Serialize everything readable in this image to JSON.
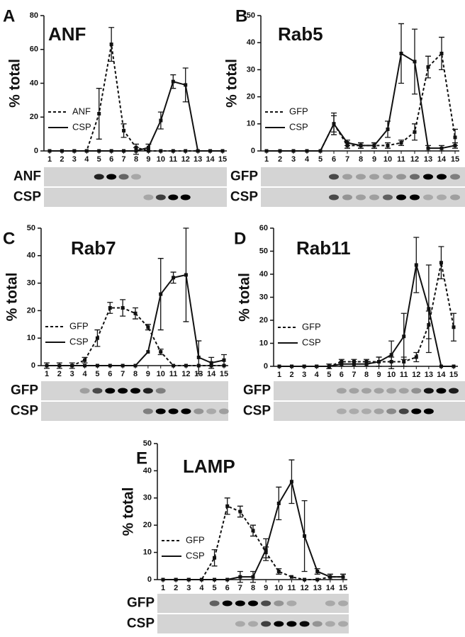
{
  "chart_data": [
    {
      "type": "line",
      "label": "A",
      "title": "ANF",
      "y_label": "% total",
      "categories": [
        "1",
        "2",
        "3",
        "4",
        "5",
        "6",
        "7",
        "8",
        "9",
        "10",
        "11",
        "12",
        "13",
        "14",
        "15"
      ],
      "ylim": [
        0,
        80
      ],
      "yticks": [
        0,
        20,
        40,
        60,
        80
      ],
      "series": [
        {
          "name": "ANF",
          "color": "#111111",
          "dash": true,
          "values": [
            0,
            0,
            0,
            0,
            22,
            63,
            12,
            2,
            0,
            0,
            0,
            0,
            0,
            0,
            0
          ],
          "errors": [
            0,
            0,
            0,
            0,
            15,
            10,
            4,
            2,
            0,
            0,
            0,
            0,
            0,
            0,
            0
          ]
        },
        {
          "name": "CSP",
          "color": "#111111",
          "dash": false,
          "values": [
            0,
            0,
            0,
            0,
            0,
            0,
            0,
            0,
            2,
            18,
            41,
            39,
            0,
            0,
            0
          ],
          "errors": [
            0,
            0,
            0,
            0,
            0,
            0,
            0,
            2,
            2,
            5,
            4,
            10,
            0,
            0,
            0
          ]
        }
      ]
    },
    {
      "type": "line",
      "label": "B",
      "title": "Rab5",
      "y_label": "% total",
      "categories": [
        "1",
        "2",
        "3",
        "4",
        "5",
        "6",
        "7",
        "8",
        "9",
        "10",
        "11",
        "12",
        "13",
        "14",
        "15"
      ],
      "ylim": [
        0,
        50
      ],
      "yticks": [
        0,
        10,
        20,
        30,
        40,
        50
      ],
      "series": [
        {
          "name": "GFP",
          "color": "#111111",
          "dash": true,
          "values": [
            0,
            0,
            0,
            0,
            0,
            10,
            2,
            2,
            2,
            2,
            3,
            7,
            31,
            36,
            5
          ],
          "errors": [
            0,
            0,
            0,
            0,
            0,
            3,
            1,
            1,
            1,
            1,
            1,
            3,
            4,
            6,
            3
          ]
        },
        {
          "name": "CSP",
          "color": "#111111",
          "dash": false,
          "values": [
            0,
            0,
            0,
            0,
            0,
            10,
            3,
            2,
            2,
            8,
            36,
            33,
            1,
            1,
            2
          ],
          "errors": [
            0,
            0,
            0,
            0,
            0,
            4,
            1,
            1,
            1,
            3,
            11,
            12,
            1,
            1,
            1
          ]
        }
      ]
    },
    {
      "type": "line",
      "label": "C",
      "title": "Rab7",
      "y_label": "% total",
      "categories": [
        "1",
        "2",
        "3",
        "4",
        "5",
        "6",
        "7",
        "8",
        "9",
        "10",
        "11",
        "12",
        "13",
        "14",
        "15"
      ],
      "ylim": [
        0,
        50
      ],
      "yticks": [
        0,
        10,
        20,
        30,
        40,
        50
      ],
      "series": [
        {
          "name": "GFP",
          "color": "#111111",
          "dash": true,
          "values": [
            0,
            0,
            0,
            2,
            10,
            21,
            21,
            19,
            14,
            5,
            0,
            0,
            0,
            0,
            0
          ],
          "errors": [
            1,
            1,
            1,
            1,
            3,
            2,
            3,
            2,
            1,
            1,
            0,
            0,
            0,
            0,
            0
          ]
        },
        {
          "name": "CSP",
          "color": "#111111",
          "dash": false,
          "values": [
            0,
            0,
            0,
            0,
            0,
            0,
            0,
            0,
            5,
            26,
            32,
            33,
            3,
            1,
            2
          ],
          "errors": [
            0,
            0,
            0,
            0,
            0,
            0,
            0,
            0,
            0,
            13,
            2,
            17,
            6,
            2,
            2
          ]
        }
      ]
    },
    {
      "type": "line",
      "label": "D",
      "title": "Rab11",
      "y_label": "% total",
      "categories": [
        "1",
        "2",
        "3",
        "4",
        "5",
        "6",
        "7",
        "8",
        "9",
        "10",
        "11",
        "12",
        "13",
        "14",
        "15"
      ],
      "ylim": [
        0,
        60
      ],
      "yticks": [
        0,
        10,
        20,
        30,
        40,
        50,
        60
      ],
      "series": [
        {
          "name": "GFP",
          "color": "#111111",
          "dash": true,
          "values": [
            0,
            0,
            0,
            0,
            0,
            2,
            2,
            2,
            2,
            2,
            2,
            4,
            18,
            45,
            17
          ],
          "errors": [
            0,
            0,
            0,
            0,
            1,
            1,
            1,
            1,
            2,
            2,
            2,
            2,
            6,
            7,
            6
          ]
        },
        {
          "name": "CSP",
          "color": "#111111",
          "dash": false,
          "values": [
            0,
            0,
            0,
            0,
            0,
            1,
            1,
            1,
            2,
            5,
            13,
            44,
            25,
            0,
            0
          ],
          "errors": [
            0,
            0,
            0,
            0,
            0,
            1,
            1,
            1,
            2,
            6,
            10,
            12,
            19,
            0,
            0
          ]
        }
      ]
    },
    {
      "type": "line",
      "label": "E",
      "title": "LAMP",
      "y_label": "% total",
      "categories": [
        "1",
        "2",
        "3",
        "4",
        "5",
        "6",
        "7",
        "8",
        "9",
        "10",
        "11",
        "12",
        "13",
        "14",
        "15"
      ],
      "ylim": [
        0,
        50
      ],
      "yticks": [
        0,
        10,
        20,
        30,
        40,
        50
      ],
      "series": [
        {
          "name": "GFP",
          "color": "#111111",
          "dash": true,
          "values": [
            0,
            0,
            0,
            0,
            8,
            27,
            25,
            18,
            10,
            3,
            1,
            0,
            0,
            1,
            1
          ],
          "errors": [
            0,
            0,
            0,
            0,
            3,
            3,
            2,
            2,
            2,
            1,
            0,
            0,
            0,
            1,
            1
          ]
        },
        {
          "name": "CSP",
          "color": "#111111",
          "dash": false,
          "values": [
            0,
            0,
            0,
            0,
            0,
            0,
            1,
            1,
            11,
            28,
            36,
            16,
            3,
            1,
            1
          ],
          "errors": [
            0,
            0,
            0,
            0,
            0,
            0,
            2,
            2,
            4,
            6,
            8,
            13,
            1,
            0,
            0
          ]
        }
      ]
    }
  ]
}
